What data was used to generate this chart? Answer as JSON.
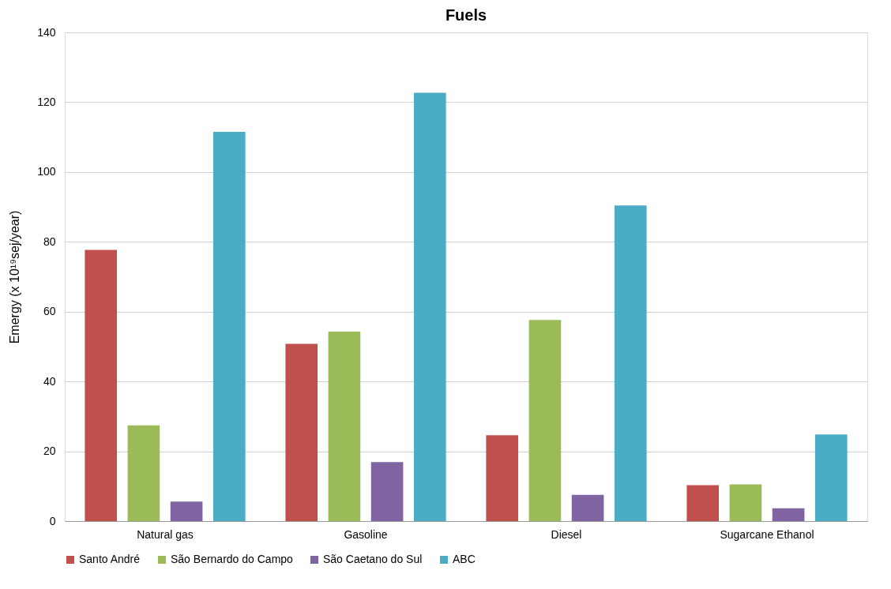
{
  "chart_data": {
    "type": "bar",
    "title": "Fuels",
    "ylabel": "Emergy (x 10¹⁹sej/year)",
    "categories": [
      "Natural gas",
      "Gasoline",
      "Diesel",
      "Sugarcane Ethanol"
    ],
    "series": [
      {
        "name": "Santo André",
        "color": "#c0504d",
        "values": [
          77.7,
          50.8,
          24.6,
          10.3
        ]
      },
      {
        "name": "São Bernardo do Campo",
        "color": "#9bbb59",
        "values": [
          27.4,
          54.3,
          57.6,
          10.5
        ]
      },
      {
        "name": "São Caetano do Sul",
        "color": "#8064a2",
        "values": [
          5.6,
          16.9,
          7.5,
          3.7
        ]
      },
      {
        "name": "ABC",
        "color": "#4bacc6",
        "values": [
          111.5,
          122.7,
          90.4,
          24.8
        ]
      }
    ],
    "ylim": [
      0,
      140
    ],
    "yticks": [
      0,
      20,
      40,
      60,
      80,
      100,
      120,
      140
    ],
    "grid": "y",
    "legend": "bottom"
  }
}
